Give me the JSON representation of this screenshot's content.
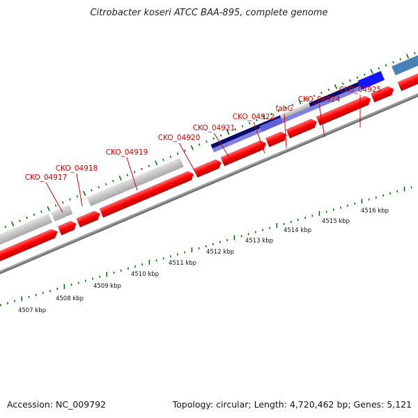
{
  "title": "Citrobacter koseri ATCC BAA-895, complete genome",
  "footer": {
    "accession": "Accession: NC_009792",
    "summary": "Topology: circular; Length: 4,720,462 bp; Genes: 5,121"
  },
  "gene_labels": [
    "CKO_04917",
    "CKO_04918",
    "CKO_04919",
    "CKO_04920",
    "CKO_04921",
    "CKO_04922",
    "fabG",
    "CKO_04924",
    "CKO_04925"
  ],
  "kbp_labels": [
    "4507 kbp",
    "4508 kbp",
    "4509 kbp",
    "4510 kbp",
    "4511 kbp",
    "4512 kbp",
    "4513 kbp",
    "4514 kbp",
    "4515 kbp",
    "4516 kbp"
  ],
  "colors": {
    "cds": "#ff0000",
    "gray_feature": "#c0c0c0",
    "navy_feature": "#0a0a6e",
    "lavender_feature": "#8080e0",
    "blue_feature": "#1414ff",
    "steelblue_feature": "#4682b4",
    "backbone": "#7a7a7a",
    "tick": "#007700",
    "label": "#d40000"
  }
}
